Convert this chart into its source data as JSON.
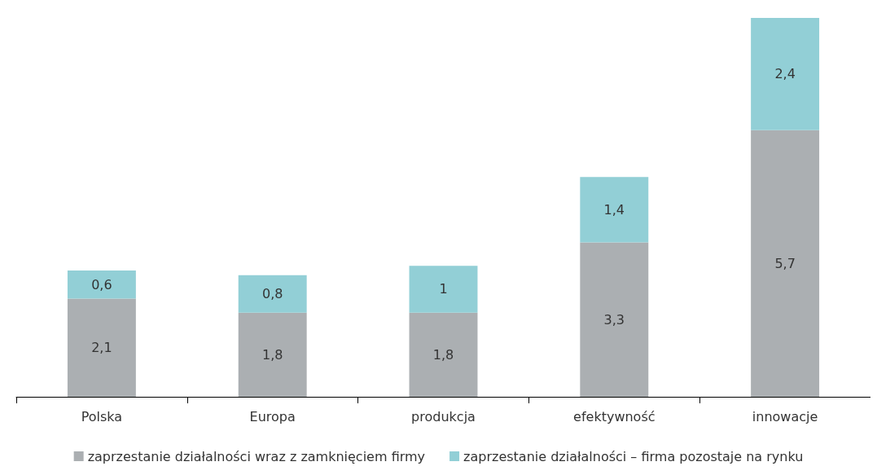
{
  "chart_data": {
    "type": "bar",
    "stacked": true,
    "legend": "bottom",
    "categories": [
      "Polska",
      "Europa",
      "produkcja",
      "efektywność",
      "innowacje"
    ],
    "series": [
      {
        "name": "zaprzestanie działalności wraz z zamknięciem firmy",
        "color": "#abafb2",
        "values": [
          2.1,
          1.8,
          1.8,
          3.3,
          5.7
        ],
        "value_labels": [
          "2,1",
          "1,8",
          "1,8",
          "3,3",
          "5,7"
        ]
      },
      {
        "name": "zaprzestanie działalności – firma pozostaje na rynku",
        "color": "#92cfd6",
        "values": [
          0.6,
          0.8,
          1,
          1.4,
          2.4
        ],
        "value_labels": [
          "0,6",
          "0,8",
          "1",
          "1,4",
          "2,4"
        ]
      }
    ]
  }
}
